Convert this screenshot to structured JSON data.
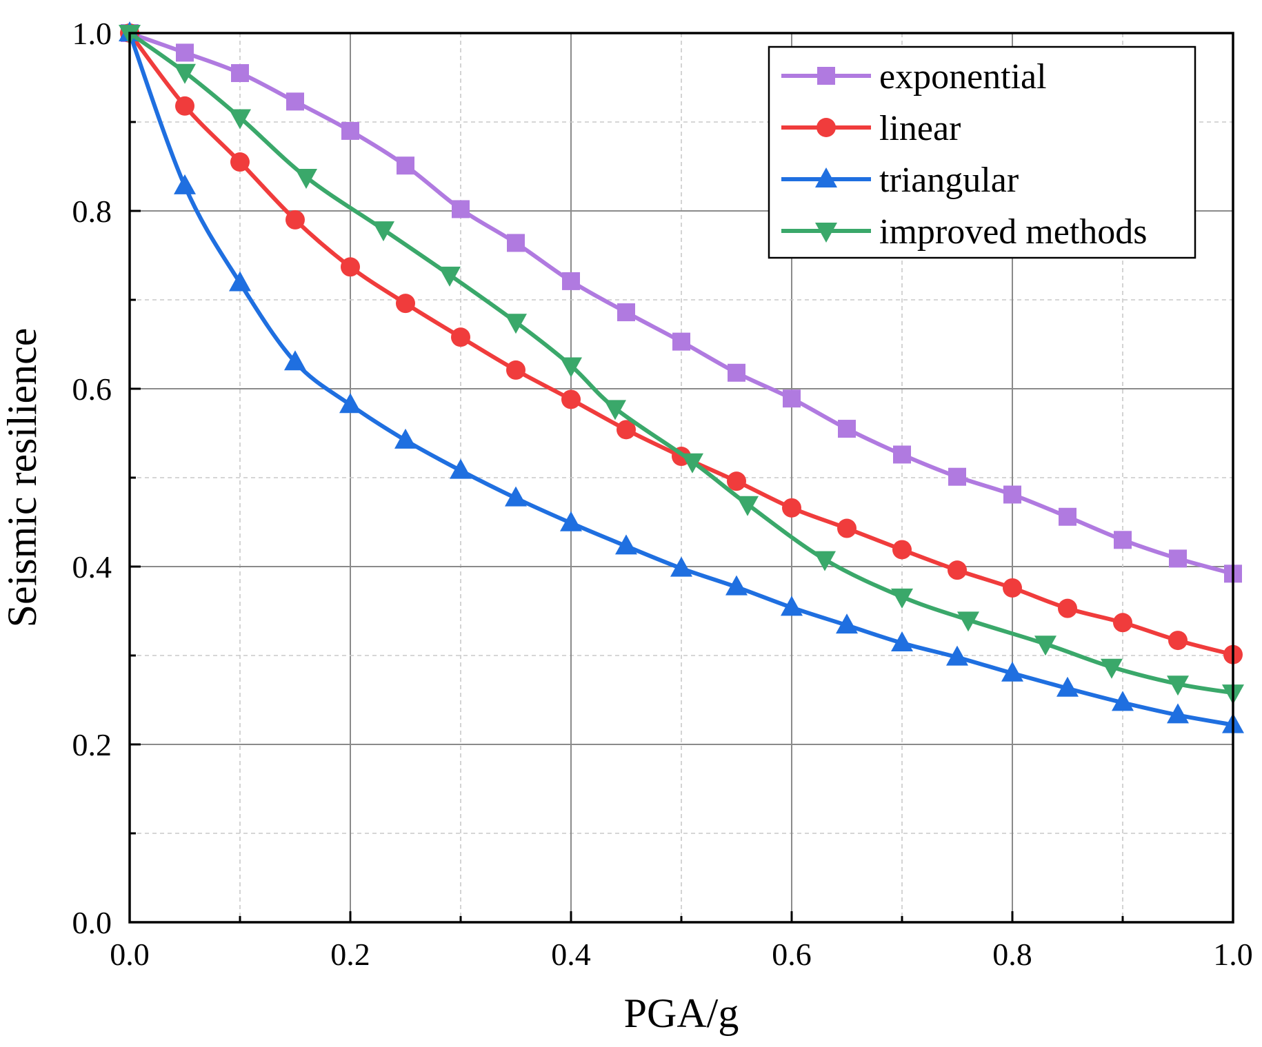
{
  "chart_data": {
    "type": "line",
    "title": "",
    "xlabel": "PGA/g",
    "ylabel": "Seismic resilience",
    "xlim": [
      0.0,
      1.0
    ],
    "ylim": [
      0.0,
      1.0
    ],
    "xticks": [
      "0.0",
      "0.2",
      "0.4",
      "0.6",
      "0.8",
      "1.0"
    ],
    "yticks": [
      "0.0",
      "0.2",
      "0.4",
      "0.6",
      "0.8",
      "1.0"
    ],
    "grid": true,
    "legend_position": "top-right",
    "series": [
      {
        "name": "exponential",
        "color": "#b07ae0",
        "marker": "square",
        "x": [
          0.0,
          0.05,
          0.1,
          0.15,
          0.2,
          0.25,
          0.3,
          0.35,
          0.4,
          0.45,
          0.5,
          0.55,
          0.6,
          0.65,
          0.7,
          0.75,
          0.8,
          0.85,
          0.9,
          0.95,
          1.0
        ],
        "y": [
          1.0,
          0.978,
          0.955,
          0.923,
          0.89,
          0.851,
          0.802,
          0.764,
          0.721,
          0.686,
          0.653,
          0.618,
          0.589,
          0.555,
          0.526,
          0.501,
          0.481,
          0.456,
          0.43,
          0.409,
          0.392
        ]
      },
      {
        "name": "linear",
        "color": "#f03c3c",
        "marker": "circle",
        "x": [
          0.0,
          0.05,
          0.1,
          0.15,
          0.2,
          0.25,
          0.3,
          0.35,
          0.4,
          0.45,
          0.5,
          0.55,
          0.6,
          0.65,
          0.7,
          0.75,
          0.8,
          0.85,
          0.9,
          0.95,
          1.0
        ],
        "y": [
          1.0,
          0.918,
          0.855,
          0.79,
          0.737,
          0.696,
          0.658,
          0.621,
          0.588,
          0.554,
          0.524,
          0.496,
          0.466,
          0.443,
          0.419,
          0.396,
          0.376,
          0.353,
          0.337,
          0.317,
          0.301
        ]
      },
      {
        "name": "triangular",
        "color": "#1f6fe0",
        "marker": "triangle-up",
        "x": [
          0.0,
          0.05,
          0.1,
          0.15,
          0.2,
          0.25,
          0.3,
          0.35,
          0.4,
          0.45,
          0.5,
          0.55,
          0.6,
          0.65,
          0.7,
          0.75,
          0.8,
          0.85,
          0.9,
          0.95,
          1.0
        ],
        "y": [
          1.0,
          0.828,
          0.719,
          0.63,
          0.582,
          0.542,
          0.508,
          0.477,
          0.449,
          0.423,
          0.398,
          0.377,
          0.354,
          0.334,
          0.314,
          0.298,
          0.28,
          0.263,
          0.247,
          0.233,
          0.222
        ]
      },
      {
        "name": "improved methods",
        "color": "#3aa86a",
        "marker": "triangle-down",
        "x": [
          0.0,
          0.05,
          0.1,
          0.16,
          0.23,
          0.29,
          0.35,
          0.4,
          0.44,
          0.51,
          0.56,
          0.63,
          0.7,
          0.76,
          0.83,
          0.89,
          0.95,
          1.0
        ],
        "y": [
          1.0,
          0.956,
          0.905,
          0.838,
          0.779,
          0.728,
          0.675,
          0.626,
          0.578,
          0.518,
          0.47,
          0.408,
          0.366,
          0.34,
          0.313,
          0.287,
          0.268,
          0.258
        ]
      }
    ]
  }
}
